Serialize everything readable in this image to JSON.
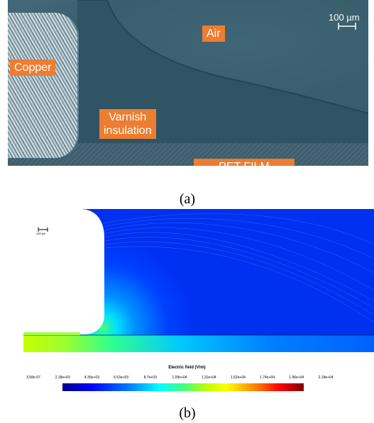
{
  "panel_a": {
    "labels": {
      "air": "Air",
      "copper": "Copper",
      "varnish": "Varnish\ninsulation",
      "pet_film": "PET FILM"
    },
    "scale_bar": "100 µm",
    "caption": "(a)"
  },
  "panel_b": {
    "scale_bar": "100 µm",
    "colorbar_title": "Electric field (V/m)",
    "colorbar_ticks": [
      "3.58e-07",
      "2.18e+03",
      "4.35e+03",
      "6.53e+03",
      "8.7e+03",
      "1.09e+04",
      "1.31e+04",
      "1.52e+04",
      "1.74e+04",
      "1.96e+04",
      "2.18e+04"
    ],
    "caption": "(b)"
  },
  "colors": {
    "label_box": "#ed7d31",
    "field_low": "#0000ff",
    "field_high": "#800000"
  }
}
